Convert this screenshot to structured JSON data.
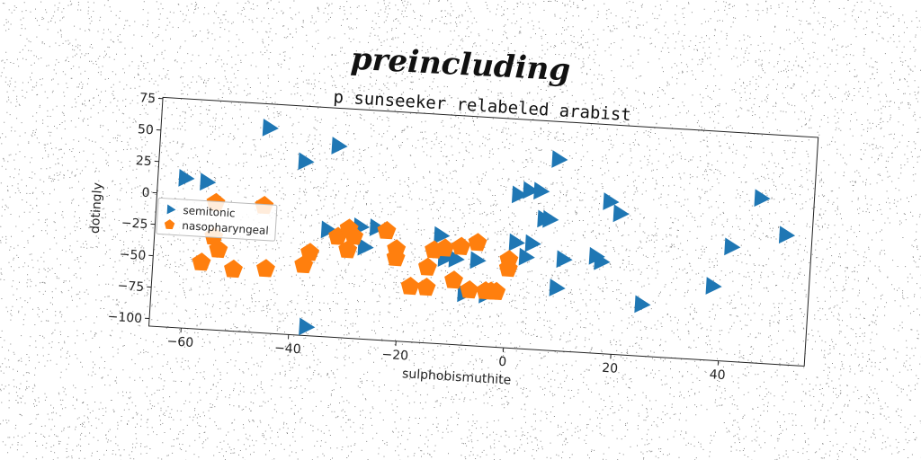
{
  "banner": "preincluding",
  "chart_data": {
    "type": "scatter",
    "title": "p sunseeker relabeled arabist",
    "xlabel": "sulphobismuthite",
    "ylabel": "dotingly",
    "xlim": [
      -66,
      56
    ],
    "ylim": [
      -106,
      76
    ],
    "xticks": [
      -60,
      -40,
      -20,
      0,
      20,
      40
    ],
    "yticks": [
      75,
      50,
      25,
      0,
      -25,
      -50,
      -75,
      -100
    ],
    "tick_labels_x": [
      "−60",
      "−40",
      "−20",
      "0",
      "20",
      "40"
    ],
    "tick_labels_y": [
      "75",
      "50",
      "25",
      "0",
      "−25",
      "−50",
      "−75",
      "−100"
    ],
    "legend_position": "center-left",
    "series": [
      {
        "name": "semitonic",
        "marker": "triangle-right",
        "color": "#1f77b4",
        "points": [
          [
            -61,
            13
          ],
          [
            -57,
            11
          ],
          [
            -46,
            57
          ],
          [
            -39,
            32
          ],
          [
            -33,
            46
          ],
          [
            -37,
            -99
          ],
          [
            -34,
            -21
          ],
          [
            -28,
            -17
          ],
          [
            -27,
            -33
          ],
          [
            -25,
            -17
          ],
          [
            -13,
            -20
          ],
          [
            -12,
            -38
          ],
          [
            -10,
            -38
          ],
          [
            -8,
            -65
          ],
          [
            -6,
            -38
          ],
          [
            -4,
            -65
          ],
          [
            1,
            16
          ],
          [
            3,
            20
          ],
          [
            5,
            20
          ],
          [
            8,
            46
          ],
          [
            6,
            -2
          ],
          [
            7,
            -2
          ],
          [
            1,
            -22
          ],
          [
            4,
            -22
          ],
          [
            3,
            -33
          ],
          [
            10,
            -33
          ],
          [
            9,
            -56
          ],
          [
            16,
            -29
          ],
          [
            17,
            -33
          ],
          [
            18,
            15
          ],
          [
            20,
            6
          ],
          [
            25,
            -65
          ],
          [
            38,
            -47
          ],
          [
            41,
            -15
          ],
          [
            46,
            25
          ],
          [
            51,
            -3
          ]
        ]
      },
      {
        "name": "nasopharyngeal",
        "marker": "pentagon",
        "color": "#ff7f0e",
        "points": [
          [
            -57,
            -53
          ],
          [
            -54,
            -42
          ],
          [
            -55,
            -32
          ],
          [
            -55,
            -5
          ],
          [
            -51,
            -57
          ],
          [
            -45,
            -55
          ],
          [
            -46,
            -5
          ],
          [
            -38,
            -50
          ],
          [
            -37,
            -40
          ],
          [
            -32,
            -26
          ],
          [
            -30,
            -19
          ],
          [
            -30,
            -36
          ],
          [
            -29,
            -25
          ],
          [
            -23,
            -19
          ],
          [
            -21,
            -33
          ],
          [
            -21,
            -40
          ],
          [
            -18,
            -62
          ],
          [
            -15,
            -46
          ],
          [
            -15,
            -62
          ],
          [
            -14,
            -32
          ],
          [
            -12,
            -30
          ],
          [
            -10,
            -55
          ],
          [
            -9,
            -28
          ],
          [
            -7,
            -62
          ],
          [
            -6,
            -24
          ],
          [
            -4,
            -62
          ],
          [
            -3,
            -62
          ],
          [
            -2,
            -62
          ],
          [
            0,
            -36
          ],
          [
            0,
            -43
          ]
        ]
      }
    ]
  }
}
